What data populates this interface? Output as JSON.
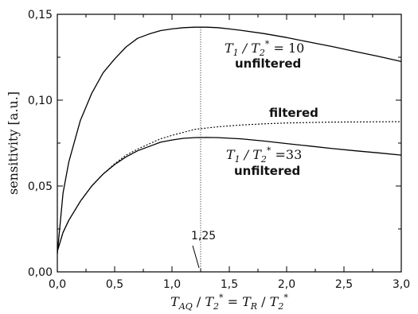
{
  "chart_data": {
    "type": "line",
    "ylabel": "sensitivity [a.u.]",
    "xlabel_parts": {
      "a": "T",
      "a_sub": "AQ",
      "sep1": " / ",
      "b": "T",
      "b_sub": "2",
      "b_sup": "*",
      "eq": " = ",
      "c": "T",
      "c_sub": "R",
      "sep2": " / ",
      "d": "T",
      "d_sub": "2",
      "d_sup": "*"
    },
    "xlim": [
      0,
      3
    ],
    "ylim": [
      0,
      0.15
    ],
    "x_ticks": [
      "0,0",
      "0,5",
      "1,0",
      "1,5",
      "2,0",
      "2,5",
      "3,0"
    ],
    "x_tick_values": [
      0,
      0.5,
      1,
      1.5,
      2,
      2.5,
      3
    ],
    "y_ticks": [
      "0,00",
      "0,05",
      "0,10",
      "0,15"
    ],
    "y_tick_values": [
      0,
      0.05,
      0.1,
      0.15
    ],
    "grid": false,
    "series": [
      {
        "label": "T1/T2*=10 unfiltered",
        "style": "solid",
        "x": [
          0,
          0.05,
          0.1,
          0.2,
          0.3,
          0.4,
          0.5,
          0.6,
          0.7,
          0.8,
          0.9,
          1.0,
          1.1,
          1.2,
          1.3,
          1.4,
          1.5,
          1.6,
          1.8,
          2.0,
          2.2,
          2.4,
          2.6,
          2.8,
          3.0
        ],
        "y": [
          0.0105,
          0.046,
          0.064,
          0.088,
          0.104,
          0.116,
          0.124,
          0.131,
          0.136,
          0.1385,
          0.1405,
          0.1415,
          0.1422,
          0.1425,
          0.1425,
          0.1422,
          0.1415,
          0.1407,
          0.1388,
          0.1365,
          0.1338,
          0.1312,
          0.1283,
          0.1255,
          0.1225
        ]
      },
      {
        "label": "filtered",
        "style": "dotted",
        "x": [
          0,
          0.05,
          0.1,
          0.2,
          0.3,
          0.4,
          0.5,
          0.6,
          0.7,
          0.8,
          0.9,
          1.0,
          1.2,
          1.4,
          1.6,
          1.8,
          2.0,
          2.2,
          2.4,
          2.6,
          2.8,
          3.0
        ],
        "y": [
          0.012,
          0.023,
          0.03,
          0.041,
          0.05,
          0.057,
          0.063,
          0.068,
          0.0715,
          0.0745,
          0.0775,
          0.0795,
          0.083,
          0.0845,
          0.0855,
          0.0862,
          0.0867,
          0.087,
          0.0872,
          0.0873,
          0.0874,
          0.0875
        ]
      },
      {
        "label": "T1/T2*=33 unfiltered",
        "style": "solid",
        "x": [
          0,
          0.05,
          0.1,
          0.2,
          0.3,
          0.4,
          0.5,
          0.6,
          0.7,
          0.8,
          0.9,
          1.0,
          1.1,
          1.2,
          1.3,
          1.4,
          1.6,
          1.8,
          2.0,
          2.2,
          2.4,
          2.6,
          2.8,
          3.0
        ],
        "y": [
          0.012,
          0.023,
          0.03,
          0.041,
          0.05,
          0.057,
          0.0625,
          0.067,
          0.0705,
          0.073,
          0.0755,
          0.0768,
          0.0778,
          0.0782,
          0.0783,
          0.0782,
          0.0775,
          0.0762,
          0.0747,
          0.0733,
          0.0718,
          0.0705,
          0.0693,
          0.068
        ]
      }
    ],
    "vertical_marker": {
      "x": 1.25,
      "style": "dotted"
    },
    "annotations": {
      "marker_label": "1,25",
      "curve1_ratio": {
        "n": "T",
        "n_sub": "1",
        "sep": " / ",
        "d": "T",
        "d_sub": "2",
        "d_sup": "*",
        "eq": " = ",
        "val": "10"
      },
      "curve1_note": "unfiltered",
      "filtered_label": "filtered",
      "curve3_ratio": {
        "n": "T",
        "n_sub": "1",
        "sep": " / ",
        "d": "T",
        "d_sub": "2",
        "d_sup": "*",
        "eq": " =",
        "val": "33"
      },
      "curve3_note": "unfiltered"
    }
  }
}
